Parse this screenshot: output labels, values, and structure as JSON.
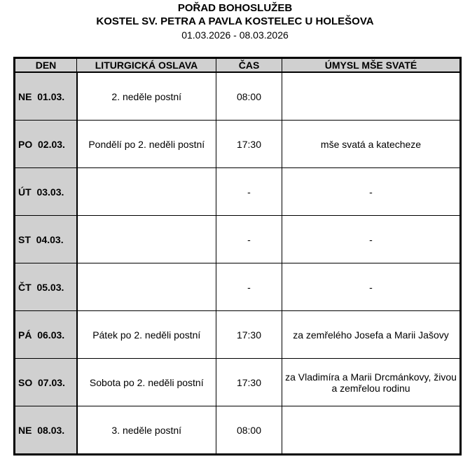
{
  "title": "POŘAD BOHOSLUŽEB",
  "church": "KOSTEL SV. PETRA A PAVLA KOSTELEC U HOLEŠOVA",
  "date_range": "01.03.2026 - 08.03.2026",
  "columns": [
    "DEN",
    "LITURGICKÁ OSLAVA",
    "ČAS",
    "ÚMYSL MŠE SVATÉ"
  ],
  "rows": [
    {
      "day": "NE  01.03.",
      "celebration": "2. neděle postní",
      "time": "08:00",
      "intention": ""
    },
    {
      "day": "PO  02.03.",
      "celebration": "Pondělí po 2. neděli postní",
      "time": "17:30",
      "intention": "mše svatá a katecheze"
    },
    {
      "day": "ÚT  03.03.",
      "celebration": "",
      "time": "-",
      "intention": "-"
    },
    {
      "day": "ST  04.03.",
      "celebration": "",
      "time": "-",
      "intention": "-"
    },
    {
      "day": "ČT  05.03.",
      "celebration": "",
      "time": "-",
      "intention": "-"
    },
    {
      "day": "PÁ  06.03.",
      "celebration": "Pátek po 2. neděli postní",
      "time": "17:30",
      "intention": "za zemřelého Josefa a Marii Jašovy"
    },
    {
      "day": "SO  07.03.",
      "celebration": "Sobota po 2. neděli postní",
      "time": "17:30",
      "intention": "za Vladimíra a Marii Drcmánkovy, živou a zemřelou rodinu"
    },
    {
      "day": "NE  08.03.",
      "celebration": "3. neděle postní",
      "time": "08:00",
      "intention": ""
    }
  ]
}
